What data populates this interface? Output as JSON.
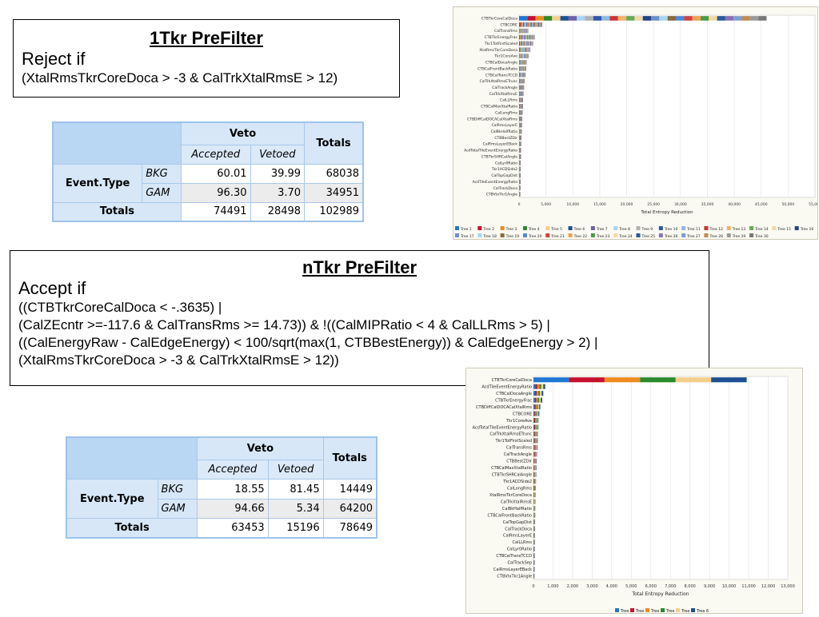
{
  "filter1": {
    "title": "1Tkr PreFilter",
    "action": "Reject if",
    "condition_lines": [
      "(XtalRmsTkrCoreDoca > -3 & CalTrkXtalRmsE > 12)"
    ]
  },
  "filter2": {
    "title": "nTkr PreFilter",
    "action": "Accept if",
    "condition_lines": [
      "((CTBTkrCoreCalDoca < -.3635) |",
      "(CalZEcntr >=-117.6 & CalTransRms >= 14.73)) & !((CalMIPRatio < 4 & CalLLRms > 5) |",
      "((CalEnergyRaw - CalEdgeEnergy) < 100/sqrt(max(1, CTBBestEnergy)) & CalEdgeEnergy > 2) |",
      "(XtalRmsTkrCoreDoca > -3 & CalTrkXtalRmsE > 12))"
    ]
  },
  "table1": {
    "veto": "Veto",
    "accepted": "Accepted",
    "vetoed": "Vetoed",
    "totals": "Totals",
    "row_header": "Event.Type",
    "rows": [
      {
        "label": "BKG",
        "accepted": "60.01",
        "vetoed": "39.99",
        "total": "68038"
      },
      {
        "label": "GAM",
        "accepted": "96.30",
        "vetoed": "3.70",
        "total": "34951"
      }
    ],
    "totals_label": "Totals",
    "totals_row": {
      "accepted": "74491",
      "vetoed": "28498",
      "total": "102989"
    }
  },
  "table2": {
    "veto": "Veto",
    "accepted": "Accepted",
    "vetoed": "Vetoed",
    "totals": "Totals",
    "row_header": "Event.Type",
    "rows": [
      {
        "label": "BKG",
        "accepted": "18.55",
        "vetoed": "81.45",
        "total": "14449"
      },
      {
        "label": "GAM",
        "accepted": "94.66",
        "vetoed": "5.34",
        "total": "64200"
      }
    ],
    "totals_label": "Totals",
    "totals_row": {
      "accepted": "63453",
      "vetoed": "15196",
      "total": "78649"
    }
  },
  "chart_data": [
    {
      "type": "bar",
      "orientation": "horizontal",
      "stacked": true,
      "xlabel": "Total Entropy Reduction",
      "xlim": [
        0,
        55000
      ],
      "xticks": [
        0,
        5000,
        10000,
        15000,
        20000,
        25000,
        30000,
        35000,
        40000,
        45000,
        50000,
        55000
      ],
      "xtick_labels": [
        "0",
        "5,000",
        "10,000",
        "15,000",
        "20,000",
        "25,000",
        "30,000",
        "35,000",
        "40,000",
        "45,000",
        "50,000",
        "55,000"
      ],
      "categories": [
        "CTBTkrCoreCalDoca",
        "CTBCORE",
        "CalTransRms",
        "CTBTkrEnergyFrac",
        "Tkr1TotFirstScaled",
        "XtalRmsTkrCoreDoca",
        "Tkr1CoreAve",
        "CTBCalDocaAngle",
        "CTBCalFrontBackRatio",
        "CTBCalTransTCCD",
        "CalTrkXtalRmsETrunc",
        "CalTrackAngle",
        "CalTrkXtalRmsE",
        "CalLLRms",
        "CTBCalMaxXtalRatio",
        "CalLongRms",
        "CTBDiffCalDOCACalXtalRms",
        "CalRmsLayerE",
        "CalBkHalfRatio",
        "CTBBestZDir",
        "CalRmsLayerEBack",
        "AcdTotalTileEventEnergyRatio",
        "CTBTkrSHRCalAngle",
        "CalLyr0Ratio",
        "Tkr1ACDSide2",
        "CalTopGapDist",
        "AcdTileEventEnergyRatio",
        "CalTrackDoca",
        "CTBVtxTkr1Angle"
      ],
      "values": [
        46000,
        4300,
        1700,
        2900,
        2600,
        2100,
        1800,
        1400,
        1300,
        1200,
        1000,
        900,
        800,
        700,
        700,
        600,
        550,
        500,
        450,
        400,
        350,
        300,
        300,
        260,
        260,
        240,
        220,
        200,
        180
      ],
      "series_legend": [
        "Tree 1",
        "Tree 2",
        "Tree 3",
        "Tree 4",
        "Tree 5",
        "Tree 6",
        "Tree 7",
        "Tree 8",
        "Tree 9",
        "Tree 10",
        "Tree 11",
        "Tree 12",
        "Tree 13",
        "Tree 14",
        "Tree 15",
        "Tree 16",
        "Tree 17",
        "Tree 18",
        "Tree 19",
        "Tree 20",
        "Tree 21",
        "Tree 22",
        "Tree 23",
        "Tree 24",
        "Tree 25",
        "Tree 26",
        "Tree 27",
        "Tree 28",
        "Tree 29",
        "Tree 30"
      ],
      "colors": [
        "#1f77d4",
        "#c8102e",
        "#ef8a1f",
        "#2b8a2b",
        "#f5cf8a",
        "#1d4f91",
        "#7060a8",
        "#a6d5ef",
        "#b0b0b0",
        "#3355aa",
        "#8fb8e0",
        "#cc3333",
        "#f4b06a",
        "#66aa55",
        "#eed9a8",
        "#224488",
        "#6f8fc8",
        "#a8d8f0",
        "#8a6a3a",
        "#4a8ad8",
        "#d04040",
        "#f0a050",
        "#4a9a4a",
        "#f3d9a0",
        "#2a5a9a",
        "#8a70b8",
        "#7aa0d0",
        "#c08a50",
        "#999999",
        "#777777"
      ],
      "legend": "bottom"
    },
    {
      "type": "bar",
      "orientation": "horizontal",
      "stacked": true,
      "xlabel": "Total Entropy Reduction",
      "xlim": [
        0,
        13000
      ],
      "xticks": [
        0,
        1000,
        2000,
        3000,
        4000,
        5000,
        6000,
        7000,
        8000,
        9000,
        10000,
        11000,
        12000,
        13000
      ],
      "xtick_labels": [
        "0",
        "1,000",
        "2,000",
        "3,000",
        "4,000",
        "5,000",
        "6,000",
        "7,000",
        "8,000",
        "9,000",
        "10,000",
        "11,000",
        "12,000",
        "13,000"
      ],
      "categories": [
        "CTBTkrCoreCalDoca",
        "AcdTileEventEnergyRatio",
        "CTBCalDocaAngle",
        "CTBTkrEnergyFrac",
        "CTBDiffCalDOCACalXtalRms",
        "CTBCORE",
        "Tkr1CoreAve",
        "AcdTotalTileEventEnergyRatio",
        "CalTrkXtalRmsETrunc",
        "Tkr1TotFirstScaled",
        "CalTransRms",
        "CalTrackAngle",
        "CTBBestZDir",
        "CTBCalMaxXtalRatio",
        "CTBTkrSHRCalAngle",
        "Tkr1ACDSide2",
        "CalLongRms",
        "XtalRmsTkrCoreDoca",
        "CalTrkXtalRmsE",
        "CalBkHalfRatio",
        "CTBCalFrontBackRatio",
        "CalTopGapDist",
        "CalTrackDoca",
        "CalRmsLayerE",
        "CalLLRms",
        "CalLyr0Ratio",
        "CTBCalTransTCCD",
        "CalTrackSep",
        "CalRmsLayerEBack",
        "CTBVtxTkr1Angle"
      ],
      "values": [
        10900,
        600,
        500,
        450,
        350,
        300,
        250,
        250,
        220,
        220,
        200,
        180,
        160,
        150,
        140,
        130,
        120,
        110,
        100,
        90,
        90,
        80,
        80,
        70,
        70,
        60,
        60,
        50,
        50,
        40
      ],
      "series_legend": [
        "Tree 1",
        "Tree 2",
        "Tree 3",
        "Tree 4",
        "Tree 5",
        "Tree 6"
      ],
      "colors": [
        "#1f77d4",
        "#c8102e",
        "#ef8a1f",
        "#2b8a2b",
        "#f5cf8a",
        "#1d4f91"
      ],
      "legend": "bottom"
    }
  ]
}
